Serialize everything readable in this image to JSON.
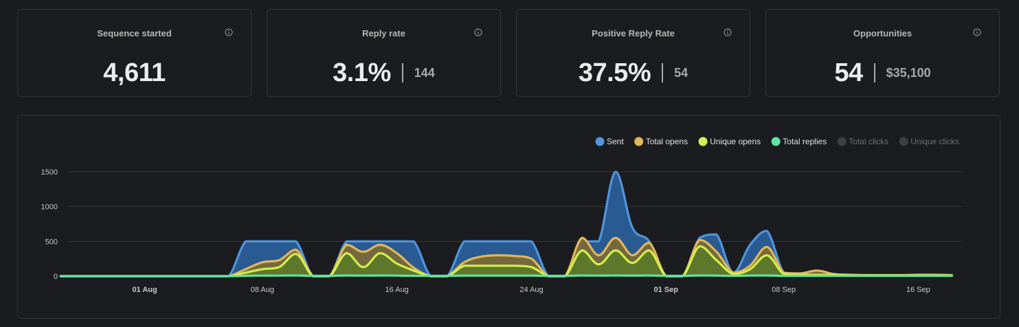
{
  "stats": [
    {
      "title": "Sequence started",
      "value": "4,611",
      "sub": ""
    },
    {
      "title": "Reply rate",
      "value": "3.1%",
      "sub": "144"
    },
    {
      "title": "Positive Reply Rate",
      "value": "37.5%",
      "sub": "54"
    },
    {
      "title": "Opportunities",
      "value": "54",
      "sub": "$35,100"
    }
  ],
  "chart_data": {
    "type": "area",
    "title": "",
    "xlabel": "",
    "ylabel": "",
    "ylim": [
      0,
      1500
    ],
    "y_ticks": [
      0,
      500,
      1000,
      1500
    ],
    "x_ticks": [
      {
        "label": "01 Aug",
        "day": 6,
        "bold": true
      },
      {
        "label": "08 Aug",
        "day": 13,
        "bold": false
      },
      {
        "label": "16 Aug",
        "day": 21,
        "bold": false
      },
      {
        "label": "24 Aug",
        "day": 29,
        "bold": false
      },
      {
        "label": "01 Sep",
        "day": 37,
        "bold": true
      },
      {
        "label": "08 Sep",
        "day": 44,
        "bold": false
      },
      {
        "label": "16 Sep",
        "day": 52,
        "bold": false
      }
    ],
    "x_range": [
      1.4,
      54.6
    ],
    "legend_position": "top-right",
    "series": [
      {
        "name": "Sent",
        "color": "#4f95dd",
        "fill": "#2b5f9c",
        "active": true,
        "values": [
          0,
          0,
          0,
          0,
          0,
          0,
          0,
          0,
          0,
          0,
          0,
          500,
          500,
          500,
          500,
          0,
          0,
          500,
          500,
          500,
          500,
          500,
          0,
          0,
          500,
          500,
          500,
          500,
          500,
          0,
          0,
          500,
          500,
          1500,
          700,
          500,
          0,
          0,
          550,
          600,
          50,
          450,
          650,
          50,
          30,
          20,
          15,
          15,
          10,
          10,
          10,
          10,
          10,
          10
        ]
      },
      {
        "name": "Total opens",
        "color": "#e2b85a",
        "fill": "#7c6a35",
        "active": true,
        "values": [
          0,
          0,
          0,
          0,
          0,
          0,
          0,
          0,
          0,
          0,
          0,
          100,
          200,
          230,
          380,
          0,
          0,
          450,
          350,
          450,
          330,
          120,
          0,
          0,
          200,
          280,
          300,
          290,
          250,
          0,
          0,
          550,
          300,
          550,
          300,
          480,
          0,
          0,
          520,
          350,
          50,
          150,
          420,
          50,
          40,
          80,
          30,
          20,
          15,
          15,
          15,
          20,
          20,
          15
        ]
      },
      {
        "name": "Unique opens",
        "color": "#d4ef4c",
        "fill": "#5b7a2a",
        "active": true,
        "values": [
          0,
          0,
          0,
          0,
          0,
          0,
          0,
          0,
          0,
          0,
          0,
          50,
          100,
          130,
          320,
          0,
          0,
          330,
          130,
          330,
          180,
          80,
          0,
          0,
          150,
          150,
          150,
          150,
          130,
          0,
          0,
          370,
          170,
          370,
          190,
          370,
          0,
          0,
          430,
          230,
          30,
          100,
          300,
          30,
          20,
          20,
          20,
          10,
          10,
          10,
          10,
          10,
          10,
          10
        ]
      },
      {
        "name": "Total replies",
        "color": "#5ee3a3",
        "fill": "none",
        "active": true,
        "values": [
          0,
          0,
          0,
          0,
          0,
          0,
          0,
          0,
          0,
          0,
          0,
          5,
          8,
          8,
          10,
          5,
          5,
          10,
          8,
          10,
          8,
          5,
          5,
          5,
          8,
          8,
          8,
          8,
          8,
          5,
          5,
          10,
          8,
          10,
          8,
          10,
          5,
          5,
          10,
          8,
          5,
          8,
          10,
          5,
          5,
          5,
          5,
          5,
          5,
          5,
          5,
          5,
          5,
          5
        ]
      },
      {
        "name": "Total clicks",
        "color": "#5b5c5f",
        "fill": "none",
        "active": false,
        "values": []
      },
      {
        "name": "Unique clicks",
        "color": "#5b5c5f",
        "fill": "none",
        "active": false,
        "values": []
      }
    ]
  }
}
